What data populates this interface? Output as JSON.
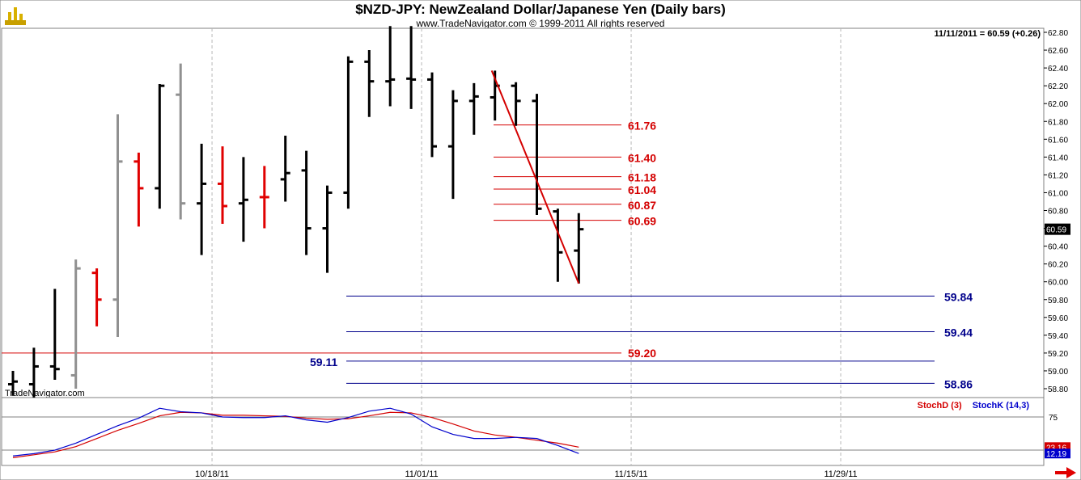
{
  "header": {
    "title": "$NZD-JPY:  NewZealand Dollar/Japanese Yen  (Daily bars)",
    "copyright": "www.TradeNavigator.com © 1999-2011 All rights reserved",
    "readout": "11/11/2011 = 60.59 (+0.26)",
    "brand": "TradeNavigator.com"
  },
  "colors": {
    "up_bar": "#000000",
    "down_bar": "#e00000",
    "neutral_bar": "#909090",
    "fib_red": "#d40000",
    "target_blue": "#00008b",
    "stochD": "#d40000",
    "stochK": "#0000cc",
    "last_price_bg": "#000000"
  },
  "chart_data": [
    {
      "type": "bar",
      "subtype": "ohlc",
      "title": "$NZD-JPY:  NewZealand Dollar/Japanese Yen  (Daily bars)",
      "x_tick_labels": [
        "10/18/11",
        "11/01/11",
        "11/15/11",
        "11/29/11"
      ],
      "x_tick_index": [
        9.5,
        19.5,
        29.5,
        39.5
      ],
      "y_tick_labels": [
        "62.80",
        "62.60",
        "62.40",
        "62.20",
        "62.00",
        "61.80",
        "61.60",
        "61.40",
        "61.20",
        "61.00",
        "60.80",
        "60.60",
        "60.40",
        "60.20",
        "60.00",
        "59.80",
        "59.60",
        "59.40",
        "59.20",
        "59.00",
        "58.80"
      ],
      "ylim": [
        58.7,
        62.87
      ],
      "last_price": "60.59",
      "bars": [
        {
          "i": 0,
          "o": 58.85,
          "h": 59.0,
          "l": 58.72,
          "c": 58.88,
          "color": "up"
        },
        {
          "i": 1,
          "o": 58.85,
          "h": 59.26,
          "l": 58.7,
          "c": 59.05,
          "color": "up"
        },
        {
          "i": 2,
          "o": 59.05,
          "h": 59.92,
          "l": 58.9,
          "c": 59.02,
          "color": "up"
        },
        {
          "i": 3,
          "o": 58.95,
          "h": 60.25,
          "l": 58.8,
          "c": 60.15,
          "color": "neutral"
        },
        {
          "i": 4,
          "o": 60.1,
          "h": 60.15,
          "l": 59.5,
          "c": 59.8,
          "color": "down"
        },
        {
          "i": 5,
          "o": 59.8,
          "h": 61.88,
          "l": 59.38,
          "c": 61.35,
          "color": "neutral"
        },
        {
          "i": 6,
          "o": 61.35,
          "h": 61.45,
          "l": 60.62,
          "c": 61.05,
          "color": "down"
        },
        {
          "i": 7,
          "o": 61.05,
          "h": 62.22,
          "l": 60.82,
          "c": 62.2,
          "color": "up"
        },
        {
          "i": 8,
          "o": 62.1,
          "h": 62.45,
          "l": 60.7,
          "c": 60.88,
          "color": "neutral"
        },
        {
          "i": 9,
          "o": 60.88,
          "h": 61.55,
          "l": 60.3,
          "c": 61.1,
          "color": "up"
        },
        {
          "i": 10,
          "o": 61.1,
          "h": 61.52,
          "l": 60.65,
          "c": 60.85,
          "color": "down"
        },
        {
          "i": 11,
          "o": 60.88,
          "h": 61.4,
          "l": 60.45,
          "c": 60.92,
          "color": "up"
        },
        {
          "i": 12,
          "o": 60.95,
          "h": 61.3,
          "l": 60.6,
          "c": 60.95,
          "color": "down"
        },
        {
          "i": 13,
          "o": 61.15,
          "h": 61.64,
          "l": 60.9,
          "c": 61.22,
          "color": "up"
        },
        {
          "i": 14,
          "o": 61.25,
          "h": 61.47,
          "l": 60.3,
          "c": 60.6,
          "color": "up"
        },
        {
          "i": 15,
          "o": 60.6,
          "h": 61.08,
          "l": 60.1,
          "c": 61.0,
          "color": "up"
        },
        {
          "i": 16,
          "o": 61.0,
          "h": 62.53,
          "l": 60.82,
          "c": 62.47,
          "color": "up"
        },
        {
          "i": 17,
          "o": 62.47,
          "h": 62.6,
          "l": 61.85,
          "c": 62.25,
          "color": "up"
        },
        {
          "i": 18,
          "o": 62.25,
          "h": 62.87,
          "l": 61.97,
          "c": 62.27,
          "color": "up"
        },
        {
          "i": 19,
          "o": 62.28,
          "h": 62.87,
          "l": 61.94,
          "c": 62.27,
          "color": "up"
        },
        {
          "i": 20,
          "o": 62.27,
          "h": 62.35,
          "l": 61.4,
          "c": 61.52,
          "color": "up"
        },
        {
          "i": 21,
          "o": 61.52,
          "h": 62.15,
          "l": 60.93,
          "c": 62.03,
          "color": "up"
        },
        {
          "i": 22,
          "o": 62.03,
          "h": 62.23,
          "l": 61.65,
          "c": 62.08,
          "color": "up"
        },
        {
          "i": 23,
          "o": 62.07,
          "h": 62.37,
          "l": 61.81,
          "c": 62.2,
          "color": "up"
        },
        {
          "i": 24,
          "o": 62.2,
          "h": 62.24,
          "l": 61.75,
          "c": 62.03,
          "color": "up"
        },
        {
          "i": 25,
          "o": 62.03,
          "h": 62.11,
          "l": 60.75,
          "c": 60.82,
          "color": "up"
        },
        {
          "i": 26,
          "o": 60.79,
          "h": 60.82,
          "l": 60.0,
          "c": 60.33,
          "color": "up"
        },
        {
          "i": 27,
          "o": 60.35,
          "h": 60.77,
          "l": 59.98,
          "c": 60.59,
          "color": "up"
        }
      ],
      "trend_line": {
        "from": {
          "i": 23,
          "price": 62.37
        },
        "to": {
          "i": 27,
          "price": 59.98
        }
      },
      "fib_levels": [
        {
          "price": 61.76,
          "label": "61.76"
        },
        {
          "price": 61.4,
          "label": "61.40"
        },
        {
          "price": 61.18,
          "label": "61.18"
        },
        {
          "price": 61.04,
          "label": "61.04"
        },
        {
          "price": 60.87,
          "label": "60.87"
        },
        {
          "price": 60.69,
          "label": "60.69"
        }
      ],
      "support_red": {
        "price": 59.2,
        "label": "59.20"
      },
      "target_levels": [
        {
          "price": 59.84,
          "label": "59.84"
        },
        {
          "price": 59.44,
          "label": "59.44"
        },
        {
          "price": 59.11,
          "label": "59.11"
        },
        {
          "price": 58.86,
          "label": "58.86"
        }
      ]
    },
    {
      "type": "line",
      "title": "",
      "legend": [
        "StochD (3)",
        "StochK (14,3)"
      ],
      "y_tick_labels": [
        "75"
      ],
      "ylim": [
        0,
        100
      ],
      "last_values": [
        "23.16",
        "12.19"
      ],
      "series": [
        {
          "name": "StochD (3)",
          "values": [
            5,
            10,
            15,
            24,
            38,
            52,
            64,
            77,
            83,
            82,
            78,
            78,
            77,
            76,
            73,
            71,
            72,
            77,
            83,
            82,
            74,
            63,
            51,
            44,
            40,
            35,
            30,
            23.16
          ]
        },
        {
          "name": "StochK (14,3)",
          "values": [
            8,
            12,
            18,
            30,
            45,
            60,
            73,
            90,
            84,
            82,
            75,
            74,
            74,
            77,
            70,
            66,
            74,
            85,
            90,
            80,
            58,
            45,
            38,
            38,
            40,
            38,
            26,
            12.19
          ]
        }
      ]
    }
  ]
}
